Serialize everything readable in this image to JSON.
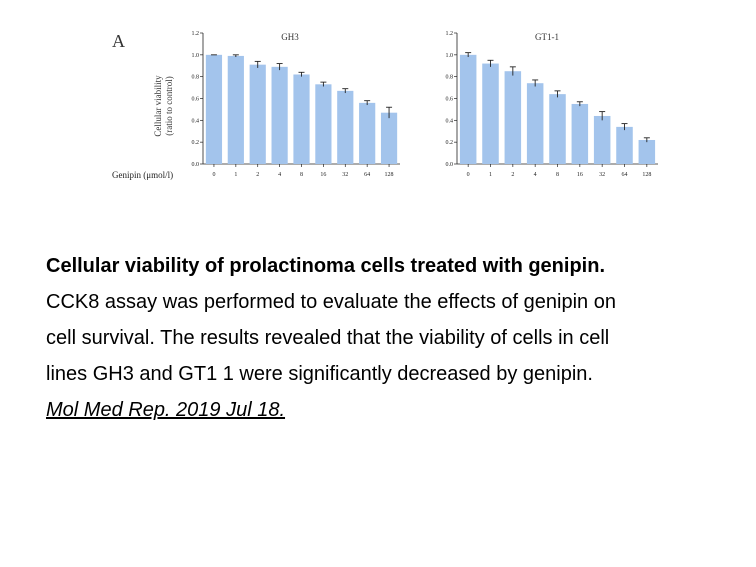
{
  "figure": {
    "panel_label": "A",
    "x_axis_name": "Genipin (μmol/l)",
    "y_axis_label_line1": "Cellular viability",
    "y_axis_label_line2": "(ratio to control)"
  },
  "chart_data": [
    {
      "type": "bar",
      "title": "GH3",
      "categories": [
        "0",
        "1",
        "2",
        "4",
        "8",
        "16",
        "32",
        "64",
        "128"
      ],
      "values": [
        1.0,
        0.99,
        0.91,
        0.89,
        0.82,
        0.73,
        0.67,
        0.56,
        0.47
      ],
      "error": [
        0.0,
        0.01,
        0.03,
        0.03,
        0.02,
        0.02,
        0.02,
        0.02,
        0.05
      ],
      "ylim": [
        0,
        1.2
      ],
      "yticks": [
        "0.0",
        "0.2",
        "0.4",
        "0.6",
        "0.8",
        "1.0",
        "1.2"
      ],
      "bar_color": "#a3c4ec",
      "grid": false
    },
    {
      "type": "bar",
      "title": "GT1-1",
      "categories": [
        "0",
        "1",
        "2",
        "4",
        "8",
        "16",
        "32",
        "64",
        "128"
      ],
      "values": [
        1.0,
        0.92,
        0.85,
        0.74,
        0.64,
        0.55,
        0.44,
        0.34,
        0.22
      ],
      "error": [
        0.02,
        0.03,
        0.04,
        0.03,
        0.03,
        0.02,
        0.04,
        0.03,
        0.02
      ],
      "ylim": [
        0,
        1.2
      ],
      "yticks": [
        "0.0",
        "0.2",
        "0.4",
        "0.6",
        "0.8",
        "1.0",
        "1.2"
      ],
      "bar_color": "#a3c4ec",
      "grid": false
    }
  ],
  "caption": {
    "title": "Cellular viability of prolactinoma cells treated with genipin.",
    "line1": "CCK8 assay was performed to evaluate the effects of genipin on",
    "line2": "cell survival. The results revealed that the viability of cells in cell",
    "line3": "lines GH3 and GT1 1 were significantly decreased by genipin.",
    "source_link": "Mol Med Rep. 2019 Jul 18."
  }
}
